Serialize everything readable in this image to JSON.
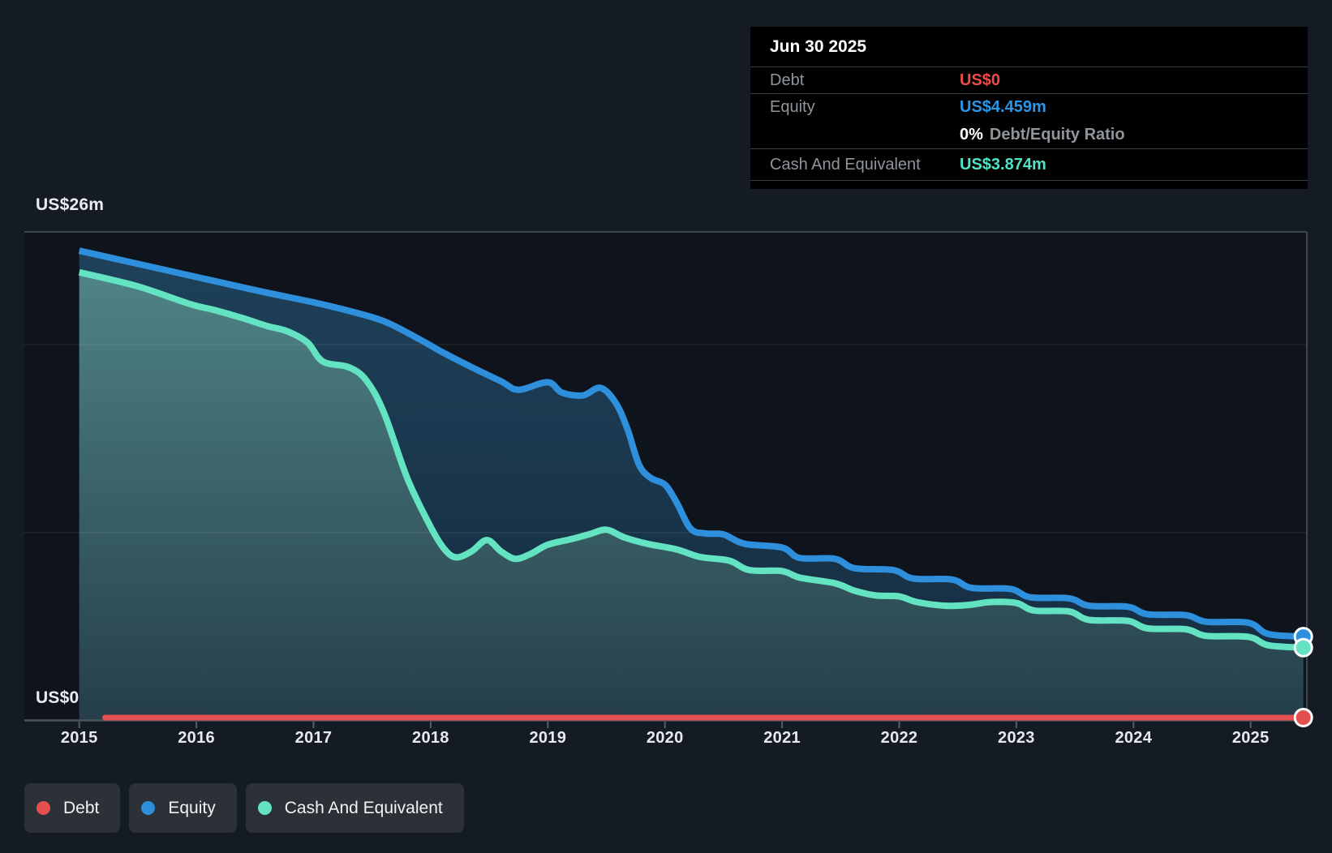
{
  "y_axis": {
    "top_label": "US$26m",
    "bottom_label": "US$0"
  },
  "tooltip": {
    "date": "Jun 30 2025",
    "debt_label": "Debt",
    "debt_value": "US$0",
    "equity_label": "Equity",
    "equity_value": "US$4.459m",
    "ratio_value": "0%",
    "ratio_label": "Debt/Equity Ratio",
    "cash_label": "Cash And Equivalent",
    "cash_value": "US$3.874m"
  },
  "tooltip_colors": {
    "debt_value": "#ee4b48",
    "equity_value": "#2b96e8",
    "cash_value": "#4fe6c8"
  },
  "legend": {
    "items": [
      {
        "label": "Debt",
        "color": "#e3504f"
      },
      {
        "label": "Equity",
        "color": "#2e8fdc"
      },
      {
        "label": "Cash And Equivalent",
        "color": "#63e3c2"
      }
    ]
  },
  "chart_data": {
    "type": "area",
    "unit": "US$ millions",
    "x_tick_labels": [
      "2015",
      "2016",
      "2017",
      "2018",
      "2019",
      "2020",
      "2021",
      "2022",
      "2023",
      "2024",
      "2025"
    ],
    "x_domain_years": [
      2014.55,
      2025.48
    ],
    "y_domain_musd": [
      0,
      26
    ],
    "y_axis_labels": {
      "top": "US$26m",
      "bottom": "US$0"
    },
    "y_gridline_values_musd": [
      26,
      20,
      10,
      0
    ],
    "grid": "horizontal",
    "legend_position": "bottom-left",
    "latest": {
      "date": "Jun 30 2025",
      "debt_musd": 0,
      "equity_musd": 4.459,
      "cash_musd": 3.874,
      "debt_equity_ratio_pct": 0
    },
    "series": [
      {
        "name": "Equity",
        "color": "#2e8fdc",
        "area_top": "#1e4159",
        "area_bottom": "#152b3f",
        "points_year_musd": [
          [
            2015.0,
            25.0
          ],
          [
            2015.5,
            24.3
          ],
          [
            2016.0,
            23.6
          ],
          [
            2016.5,
            22.9
          ],
          [
            2017.0,
            22.25
          ],
          [
            2017.3,
            21.8
          ],
          [
            2017.6,
            21.25
          ],
          [
            2017.9,
            20.3
          ],
          [
            2018.1,
            19.6
          ],
          [
            2018.35,
            18.8
          ],
          [
            2018.6,
            18.05
          ],
          [
            2018.75,
            17.6
          ],
          [
            2019.0,
            18.0
          ],
          [
            2019.12,
            17.45
          ],
          [
            2019.3,
            17.3
          ],
          [
            2019.45,
            17.7
          ],
          [
            2019.58,
            16.9
          ],
          [
            2019.68,
            15.5
          ],
          [
            2019.78,
            13.6
          ],
          [
            2019.88,
            12.9
          ],
          [
            2020.0,
            12.55
          ],
          [
            2020.1,
            11.6
          ],
          [
            2020.22,
            10.2
          ],
          [
            2020.35,
            9.95
          ],
          [
            2020.5,
            9.9
          ],
          [
            2020.68,
            9.4
          ],
          [
            2021.0,
            9.2
          ],
          [
            2021.15,
            8.65
          ],
          [
            2021.45,
            8.6
          ],
          [
            2021.62,
            8.1
          ],
          [
            2021.95,
            8.0
          ],
          [
            2022.12,
            7.55
          ],
          [
            2022.45,
            7.5
          ],
          [
            2022.62,
            7.05
          ],
          [
            2022.95,
            7.0
          ],
          [
            2023.12,
            6.55
          ],
          [
            2023.45,
            6.5
          ],
          [
            2023.62,
            6.1
          ],
          [
            2023.95,
            6.05
          ],
          [
            2024.12,
            5.65
          ],
          [
            2024.45,
            5.6
          ],
          [
            2024.62,
            5.25
          ],
          [
            2024.98,
            5.2
          ],
          [
            2025.15,
            4.6
          ],
          [
            2025.45,
            4.459
          ]
        ]
      },
      {
        "name": "Cash And Equivalent",
        "color": "#63e3c2",
        "area_top": "#4f8486",
        "area_bottom": "#253e49",
        "points_year_musd": [
          [
            2015.0,
            23.85
          ],
          [
            2015.5,
            23.1
          ],
          [
            2015.95,
            22.15
          ],
          [
            2016.15,
            21.85
          ],
          [
            2016.4,
            21.4
          ],
          [
            2016.6,
            21.0
          ],
          [
            2016.78,
            20.7
          ],
          [
            2016.95,
            20.1
          ],
          [
            2017.08,
            19.1
          ],
          [
            2017.3,
            18.8
          ],
          [
            2017.45,
            18.1
          ],
          [
            2017.6,
            16.4
          ],
          [
            2017.8,
            12.9
          ],
          [
            2018.0,
            10.3
          ],
          [
            2018.12,
            9.1
          ],
          [
            2018.22,
            8.68
          ],
          [
            2018.35,
            9.0
          ],
          [
            2018.48,
            9.6
          ],
          [
            2018.6,
            9.0
          ],
          [
            2018.72,
            8.6
          ],
          [
            2018.85,
            8.85
          ],
          [
            2019.0,
            9.35
          ],
          [
            2019.2,
            9.65
          ],
          [
            2019.35,
            9.9
          ],
          [
            2019.5,
            10.15
          ],
          [
            2019.65,
            9.75
          ],
          [
            2019.85,
            9.4
          ],
          [
            2020.1,
            9.1
          ],
          [
            2020.3,
            8.7
          ],
          [
            2020.55,
            8.5
          ],
          [
            2020.72,
            8.0
          ],
          [
            2021.0,
            7.95
          ],
          [
            2021.15,
            7.6
          ],
          [
            2021.45,
            7.3
          ],
          [
            2021.62,
            6.9
          ],
          [
            2021.8,
            6.65
          ],
          [
            2022.0,
            6.6
          ],
          [
            2022.15,
            6.3
          ],
          [
            2022.4,
            6.1
          ],
          [
            2022.6,
            6.15
          ],
          [
            2022.78,
            6.3
          ],
          [
            2023.0,
            6.25
          ],
          [
            2023.15,
            5.85
          ],
          [
            2023.45,
            5.8
          ],
          [
            2023.62,
            5.35
          ],
          [
            2023.95,
            5.3
          ],
          [
            2024.12,
            4.9
          ],
          [
            2024.45,
            4.85
          ],
          [
            2024.62,
            4.5
          ],
          [
            2024.98,
            4.45
          ],
          [
            2025.15,
            4.0
          ],
          [
            2025.45,
            3.874
          ]
        ]
      },
      {
        "name": "Debt",
        "color": "#e3504f",
        "points_year_musd": [
          [
            2015.22,
            0
          ],
          [
            2025.45,
            0
          ]
        ]
      }
    ]
  }
}
